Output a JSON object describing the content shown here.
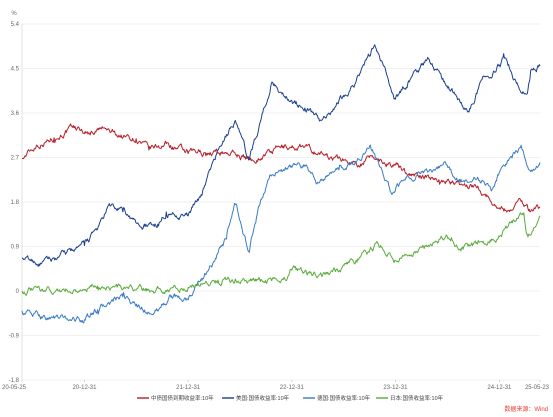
{
  "chart_data": {
    "type": "line",
    "unit": "%",
    "ylim": [
      -1.8,
      5.4
    ],
    "y_ticks": [
      "5.4",
      "4.5",
      "3.6",
      "2.7",
      "1.8",
      "0.9",
      "0",
      "-0.9",
      "-1.8"
    ],
    "x_range": [
      "2020-05-25",
      "2025-05-23"
    ],
    "x_ticks": [
      {
        "label": "20-05-25",
        "date": "2020-05-25"
      },
      {
        "label": "20-12-31",
        "date": "2020-12-31"
      },
      {
        "label": "21-12-31",
        "date": "2021-12-31"
      },
      {
        "label": "22-12-31",
        "date": "2022-12-31"
      },
      {
        "label": "23-12-31",
        "date": "2023-12-31"
      },
      {
        "label": "24-12-31",
        "date": "2024-12-31"
      },
      {
        "label": "25-05-23",
        "date": "2025-05-23"
      }
    ],
    "grid": true,
    "legend_position": "bottom",
    "series": [
      {
        "name": "中债国债到期收益率:10年",
        "color": "#b51f2a",
        "points": [
          [
            "2020-05-25",
            2.68
          ],
          [
            "2020-07-15",
            2.95
          ],
          [
            "2020-09-15",
            3.1
          ],
          [
            "2020-11-25",
            3.3
          ],
          [
            "2021-01-15",
            3.2
          ],
          [
            "2021-03-01",
            3.28
          ],
          [
            "2021-05-01",
            3.15
          ],
          [
            "2021-07-01",
            3.08
          ],
          [
            "2021-08-15",
            2.85
          ],
          [
            "2021-10-15",
            2.98
          ],
          [
            "2021-12-31",
            2.78
          ],
          [
            "2022-03-01",
            2.8
          ],
          [
            "2022-06-01",
            2.8
          ],
          [
            "2022-08-15",
            2.65
          ],
          [
            "2022-11-20",
            2.9
          ],
          [
            "2023-01-31",
            2.92
          ],
          [
            "2023-05-01",
            2.75
          ],
          [
            "2023-08-15",
            2.58
          ],
          [
            "2023-10-15",
            2.7
          ],
          [
            "2023-12-31",
            2.55
          ],
          [
            "2024-03-01",
            2.35
          ],
          [
            "2024-06-01",
            2.25
          ],
          [
            "2024-08-15",
            2.15
          ],
          [
            "2024-10-15",
            2.12
          ],
          [
            "2024-12-31",
            1.68
          ],
          [
            "2025-01-31",
            1.62
          ],
          [
            "2025-03-15",
            1.85
          ],
          [
            "2025-04-15",
            1.65
          ],
          [
            "2025-05-23",
            1.7
          ]
        ]
      },
      {
        "name": "美国:国债收益率:10年",
        "color": "#1c3f8f",
        "points": [
          [
            "2020-05-25",
            0.66
          ],
          [
            "2020-07-31",
            0.55
          ],
          [
            "2020-09-30",
            0.68
          ],
          [
            "2020-11-30",
            0.85
          ],
          [
            "2020-12-31",
            0.92
          ],
          [
            "2021-02-15",
            1.25
          ],
          [
            "2021-03-31",
            1.72
          ],
          [
            "2021-05-15",
            1.6
          ],
          [
            "2021-07-15",
            1.3
          ],
          [
            "2021-09-15",
            1.35
          ],
          [
            "2021-10-15",
            1.6
          ],
          [
            "2021-12-31",
            1.52
          ],
          [
            "2022-02-15",
            1.95
          ],
          [
            "2022-04-15",
            2.85
          ],
          [
            "2022-06-15",
            3.45
          ],
          [
            "2022-08-01",
            2.65
          ],
          [
            "2022-09-15",
            3.5
          ],
          [
            "2022-10-20",
            4.2
          ],
          [
            "2022-12-31",
            3.85
          ],
          [
            "2023-02-15",
            3.7
          ],
          [
            "2023-04-15",
            3.45
          ],
          [
            "2023-06-15",
            3.85
          ],
          [
            "2023-08-15",
            4.25
          ],
          [
            "2023-10-19",
            4.98
          ],
          [
            "2023-12-31",
            3.88
          ],
          [
            "2024-02-15",
            4.25
          ],
          [
            "2024-04-25",
            4.7
          ],
          [
            "2024-06-15",
            4.3
          ],
          [
            "2024-08-01",
            3.95
          ],
          [
            "2024-09-15",
            3.62
          ],
          [
            "2024-10-31",
            4.28
          ],
          [
            "2024-12-31",
            4.57
          ],
          [
            "2025-01-15",
            4.8
          ],
          [
            "2025-03-01",
            4.2
          ],
          [
            "2025-04-08",
            3.99
          ],
          [
            "2025-04-20",
            4.45
          ],
          [
            "2025-05-23",
            4.55
          ]
        ]
      },
      {
        "name": "德国:国债收益率:10年",
        "color": "#3a7cc4",
        "points": [
          [
            "2020-05-25",
            -0.4
          ],
          [
            "2020-08-01",
            -0.52
          ],
          [
            "2020-10-01",
            -0.55
          ],
          [
            "2020-12-31",
            -0.58
          ],
          [
            "2021-02-15",
            -0.38
          ],
          [
            "2021-05-15",
            -0.12
          ],
          [
            "2021-07-15",
            -0.35
          ],
          [
            "2021-09-01",
            -0.45
          ],
          [
            "2021-10-31",
            -0.12
          ],
          [
            "2021-12-31",
            -0.18
          ],
          [
            "2022-02-15",
            0.25
          ],
          [
            "2022-04-01",
            0.6
          ],
          [
            "2022-05-15",
            1.05
          ],
          [
            "2022-06-15",
            1.75
          ],
          [
            "2022-08-01",
            0.8
          ],
          [
            "2022-09-15",
            1.85
          ],
          [
            "2022-10-15",
            2.35
          ],
          [
            "2022-12-31",
            2.5
          ],
          [
            "2023-02-15",
            2.55
          ],
          [
            "2023-04-01",
            2.2
          ],
          [
            "2023-06-15",
            2.45
          ],
          [
            "2023-08-15",
            2.6
          ],
          [
            "2023-10-04",
            2.95
          ],
          [
            "2023-12-15",
            2.0
          ],
          [
            "2024-01-31",
            2.25
          ],
          [
            "2024-04-15",
            2.45
          ],
          [
            "2024-06-15",
            2.55
          ],
          [
            "2024-08-15",
            2.2
          ],
          [
            "2024-10-15",
            2.3
          ],
          [
            "2024-12-05",
            2.05
          ],
          [
            "2025-01-15",
            2.55
          ],
          [
            "2025-03-15",
            2.9
          ],
          [
            "2025-04-15",
            2.45
          ],
          [
            "2025-05-23",
            2.6
          ]
        ]
      },
      {
        "name": "日本:国债收益率:10年",
        "color": "#5aaa3c",
        "points": [
          [
            "2020-05-25",
            0.0
          ],
          [
            "2020-09-01",
            0.02
          ],
          [
            "2020-12-31",
            0.02
          ],
          [
            "2021-02-15",
            0.1
          ],
          [
            "2021-04-15",
            0.08
          ],
          [
            "2021-08-15",
            0.02
          ],
          [
            "2021-12-31",
            0.07
          ],
          [
            "2022-04-15",
            0.22
          ],
          [
            "2022-06-15",
            0.24
          ],
          [
            "2022-08-15",
            0.22
          ],
          [
            "2022-12-15",
            0.25
          ],
          [
            "2022-12-31",
            0.42
          ],
          [
            "2023-03-15",
            0.32
          ],
          [
            "2023-06-15",
            0.4
          ],
          [
            "2023-08-15",
            0.62
          ],
          [
            "2023-11-01",
            0.95
          ],
          [
            "2023-12-31",
            0.62
          ],
          [
            "2024-03-01",
            0.7
          ],
          [
            "2024-05-15",
            0.98
          ],
          [
            "2024-07-15",
            1.08
          ],
          [
            "2024-08-15",
            0.85
          ],
          [
            "2024-10-15",
            0.95
          ],
          [
            "2024-12-31",
            1.1
          ],
          [
            "2025-02-15",
            1.38
          ],
          [
            "2025-03-27",
            1.58
          ],
          [
            "2025-04-08",
            1.15
          ],
          [
            "2025-05-01",
            1.28
          ],
          [
            "2025-05-23",
            1.52
          ]
        ]
      }
    ],
    "source": "数据来源：Wind"
  }
}
